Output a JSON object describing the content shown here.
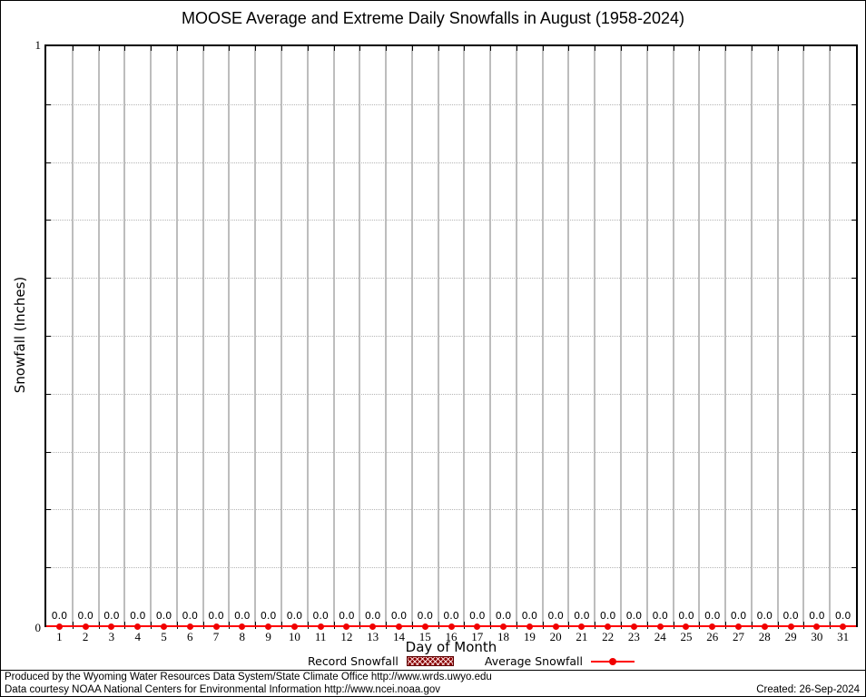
{
  "page": {
    "created_label": "Created: 26-Sep-2024",
    "footer_lines": [
      "Produced by the Wyoming Water Resources Data System/State Climate Office http://www.wrds.uwyo.edu",
      "Data courtesy NOAA National Centers for Environmental Information http://www.ncei.noaa.gov"
    ]
  },
  "legend": {
    "record_label": "Record Snowfall",
    "average_label": "Average Snowfall"
  },
  "chart_data": {
    "type": "line",
    "title": "MOOSE Average and Extreme Daily Snowfalls in August (1958-2024)",
    "xlabel": "Day of Month",
    "ylabel": "Snowfall (Inches)",
    "ylim": [
      0,
      1
    ],
    "y_axis_tick_labels": {
      "max": "1",
      "min": "0"
    },
    "y_minor_tick_step": 0.1,
    "grid": {
      "vertical": "solid gray at day boundaries",
      "horizontal": "dotted gray every 0.1"
    },
    "legend_position": "bottom",
    "categories": [
      1,
      2,
      3,
      4,
      5,
      6,
      7,
      8,
      9,
      10,
      11,
      12,
      13,
      14,
      15,
      16,
      17,
      18,
      19,
      20,
      21,
      22,
      23,
      24,
      25,
      26,
      27,
      28,
      29,
      30,
      31
    ],
    "series": [
      {
        "name": "Record Snowfall",
        "style": "hatched-box",
        "color": "#8b0000",
        "values": [
          0,
          0,
          0,
          0,
          0,
          0,
          0,
          0,
          0,
          0,
          0,
          0,
          0,
          0,
          0,
          0,
          0,
          0,
          0,
          0,
          0,
          0,
          0,
          0,
          0,
          0,
          0,
          0,
          0,
          0,
          0
        ]
      },
      {
        "name": "Average Snowfall",
        "style": "line-with-markers",
        "color": "#ff0000",
        "values": [
          0,
          0,
          0,
          0,
          0,
          0,
          0,
          0,
          0,
          0,
          0,
          0,
          0,
          0,
          0,
          0,
          0,
          0,
          0,
          0,
          0,
          0,
          0,
          0,
          0,
          0,
          0,
          0,
          0,
          0,
          0
        ]
      }
    ],
    "point_labels": [
      "0.0",
      "0.0",
      "0.0",
      "0.0",
      "0.0",
      "0.0",
      "0.0",
      "0.0",
      "0.0",
      "0.0",
      "0.0",
      "0.0",
      "0.0",
      "0.0",
      "0.0",
      "0.0",
      "0.0",
      "0.0",
      "0.0",
      "0.0",
      "0.0",
      "0.0",
      "0.0",
      "0.0",
      "0.0",
      "0.0",
      "0.0",
      "0.0",
      "0.0",
      "0.0",
      "0.0"
    ]
  },
  "colors": {
    "series_red": "#ff0000",
    "record_dark_red": "#8b0000",
    "grid_gray": "#bdbdbd"
  }
}
